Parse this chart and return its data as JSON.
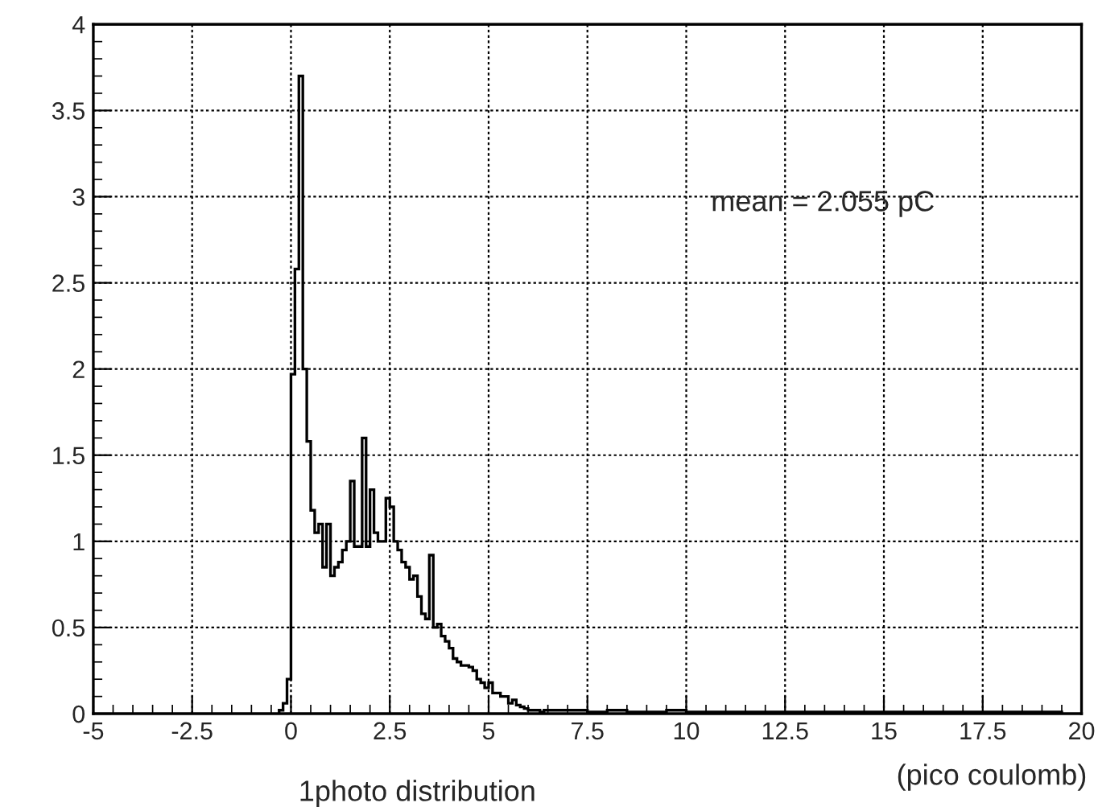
{
  "chart_data": {
    "type": "histogram",
    "title": "1photo distribution",
    "xlabel": "(pico coulomb)",
    "bins": [
      -0.3,
      -0.2,
      -0.1,
      0.0,
      0.1,
      0.2,
      0.3,
      0.4,
      0.5,
      0.6,
      0.7,
      0.8,
      0.9,
      1.0,
      1.1,
      1.2,
      1.3,
      1.4,
      1.5,
      1.6,
      1.7,
      1.8,
      1.9,
      2.0,
      2.1,
      2.2,
      2.3,
      2.4,
      2.5,
      2.6,
      2.7,
      2.8,
      2.9,
      3.0,
      3.1,
      3.2,
      3.3,
      3.4,
      3.5,
      3.6,
      3.7,
      3.8,
      3.9,
      4.0,
      4.1,
      4.2,
      4.3,
      4.4,
      4.5,
      4.6,
      4.7,
      4.8,
      4.9,
      5.0,
      5.1,
      5.2,
      5.3,
      5.4,
      5.5,
      5.6,
      5.7,
      5.8,
      5.9,
      6.0,
      6.1,
      6.2,
      6.3,
      6.4,
      6.5,
      7.0,
      7.5,
      8.0,
      8.5,
      9.0,
      9.5,
      10.0,
      10.5,
      11.0,
      11.5,
      12.0,
      12.5,
      13.0,
      13.5,
      14.0,
      14.5,
      15.0,
      15.5,
      16.0,
      16.5,
      17.0,
      17.5,
      18.0,
      18.5,
      19.0,
      19.5
    ],
    "values": [
      0.02,
      0.06,
      0.2,
      1.97,
      2.58,
      3.7,
      2.0,
      1.58,
      1.18,
      1.05,
      1.1,
      0.85,
      1.1,
      0.8,
      0.85,
      0.88,
      0.95,
      1.0,
      1.35,
      0.97,
      0.97,
      1.6,
      0.97,
      1.3,
      1.05,
      1.0,
      1.0,
      1.25,
      1.2,
      1.0,
      0.95,
      0.88,
      0.85,
      0.78,
      0.8,
      0.68,
      0.58,
      0.55,
      0.92,
      0.5,
      0.52,
      0.45,
      0.42,
      0.38,
      0.32,
      0.3,
      0.28,
      0.28,
      0.27,
      0.25,
      0.2,
      0.18,
      0.15,
      0.18,
      0.12,
      0.12,
      0.1,
      0.1,
      0.06,
      0.08,
      0.05,
      0.04,
      0.03,
      0.02,
      0.02,
      0.02,
      0.01,
      0.02,
      0.02,
      0.02,
      0.01,
      0.02,
      0.01,
      0.01,
      0.02,
      0.01,
      0.01,
      0.01,
      0.01,
      0.01,
      0.01,
      0.01,
      0.01,
      0.01,
      0.01,
      0.01,
      0.01,
      0.01,
      0.01,
      0.01,
      0.01,
      0.01,
      0.01,
      0.01
    ],
    "color": "#000000",
    "xlim": [
      -5,
      20
    ],
    "xticks": [
      -5,
      -2.5,
      0,
      2.5,
      5,
      7.5,
      10,
      12.5,
      15,
      17.5,
      20
    ],
    "ylim": [
      0,
      4
    ],
    "yticks": [
      0,
      0.5,
      1,
      1.5,
      2,
      2.5,
      3,
      3.5,
      4
    ],
    "grid": true,
    "annotations": [
      "mean = 2.055 pC"
    ]
  }
}
